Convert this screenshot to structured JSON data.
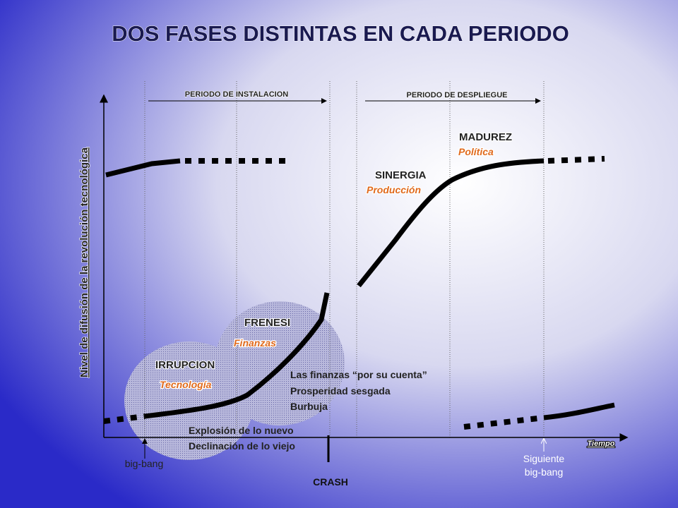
{
  "title": "DOS FASES DISTINTAS EN CADA PERIODO",
  "axes": {
    "y_label": "Nivel de difusión de la revolución tecnológica",
    "x_label": "Tiempo"
  },
  "periods": [
    "PERIODO DE INSTALACION",
    "PERIODO DE DESPLIEGUE"
  ],
  "phases": [
    {
      "name": "IRRUPCION",
      "sector": "Tecnología"
    },
    {
      "name": "FRENESI",
      "sector": "Finanzas"
    },
    {
      "name": "SINERGIA",
      "sector": "Producción"
    },
    {
      "name": "MADUREZ",
      "sector": "Política"
    }
  ],
  "notes": {
    "irrupcion": [
      "Explosión de lo nuevo",
      "Declinación de lo viejo"
    ],
    "frenesi": [
      "Las finanzas “por su cuenta”",
      "Prosperidad sesgada",
      "Burbuja"
    ]
  },
  "markers": {
    "big_bang": "big-bang",
    "crash": "CRASH",
    "next_big_bang": [
      "Siguiente",
      "big-bang"
    ]
  }
}
